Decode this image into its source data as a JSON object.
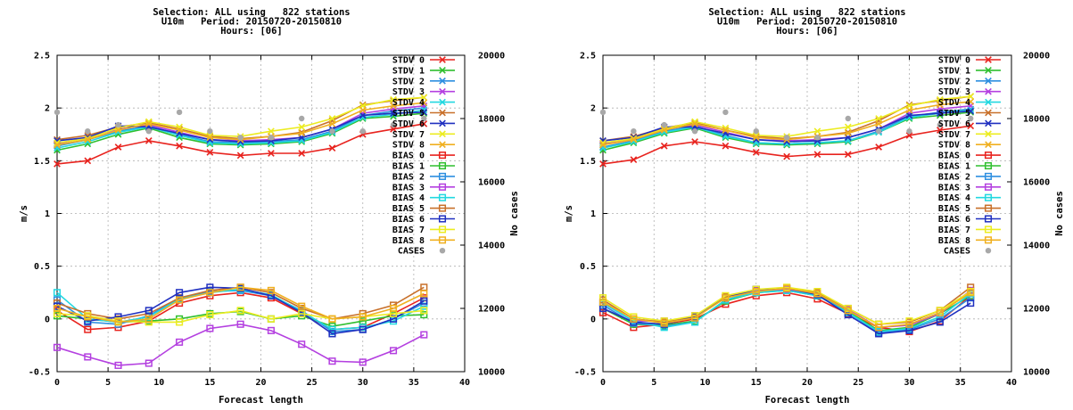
{
  "series_style": {
    "STDV 0": {
      "color": "#e8231e",
      "marker": "x"
    },
    "STDV 1": {
      "color": "#2fbf2f",
      "marker": "x"
    },
    "STDV 2": {
      "color": "#2e8fe0",
      "marker": "x"
    },
    "STDV 3": {
      "color": "#b440e0",
      "marker": "x"
    },
    "STDV 4": {
      "color": "#22d8e0",
      "marker": "x"
    },
    "STDV 5": {
      "color": "#c8702a",
      "marker": "x"
    },
    "STDV 6": {
      "color": "#2030c0",
      "marker": "x"
    },
    "STDV 7": {
      "color": "#ecec20",
      "marker": "x"
    },
    "STDV 8": {
      "color": "#f0b020",
      "marker": "x"
    },
    "BIAS 0": {
      "color": "#e8231e",
      "marker": "s"
    },
    "BIAS 1": {
      "color": "#2fbf2f",
      "marker": "s"
    },
    "BIAS 2": {
      "color": "#2e8fe0",
      "marker": "s"
    },
    "BIAS 3": {
      "color": "#b440e0",
      "marker": "s"
    },
    "BIAS 4": {
      "color": "#22d8e0",
      "marker": "s"
    },
    "BIAS 5": {
      "color": "#c8702a",
      "marker": "s"
    },
    "BIAS 6": {
      "color": "#2030c0",
      "marker": "s"
    },
    "BIAS 7": {
      "color": "#ecec20",
      "marker": "s"
    },
    "BIAS 8": {
      "color": "#f0b020",
      "marker": "s"
    },
    "CASES": {
      "color": "#a8a8a8",
      "marker": "o"
    }
  },
  "chart_data": [
    {
      "type": "line",
      "title_lines": [
        "Selection: ALL using   822 stations",
        "U10m   Period: 20150720-20150810",
        "Hours: [06]"
      ],
      "xlabel": "Forecast length",
      "ylabel": "m/s",
      "y2label": "No cases",
      "xlim": [
        0,
        40
      ],
      "ylim": [
        -0.5,
        2.5
      ],
      "y2lim": [
        10000,
        20000
      ],
      "xticks": [
        "0",
        "5",
        "10",
        "15",
        "20",
        "25",
        "30",
        "35",
        "40"
      ],
      "yticks": [
        "-0.5",
        "0",
        "0.5",
        "1",
        "1.5",
        "2",
        "2.5"
      ],
      "y2ticks": [
        "10000",
        "12000",
        "14000",
        "16000",
        "18000",
        "20000"
      ],
      "grid": true,
      "legend_position": "top-right",
      "x": [
        0,
        3,
        6,
        9,
        12,
        15,
        18,
        21,
        24,
        27,
        30,
        33,
        36
      ],
      "series": [
        {
          "name": "STDV 0",
          "axis": "y",
          "values": [
            1.47,
            1.5,
            1.63,
            1.69,
            1.64,
            1.58,
            1.55,
            1.57,
            1.57,
            1.62,
            1.75,
            1.8,
            1.85
          ]
        },
        {
          "name": "STDV 1",
          "axis": "y",
          "values": [
            1.6,
            1.66,
            1.75,
            1.81,
            1.72,
            1.66,
            1.65,
            1.66,
            1.68,
            1.76,
            1.9,
            1.92,
            1.95
          ]
        },
        {
          "name": "STDV 2",
          "axis": "y",
          "values": [
            1.64,
            1.7,
            1.78,
            1.83,
            1.75,
            1.68,
            1.67,
            1.68,
            1.7,
            1.78,
            1.93,
            1.97,
            2.0
          ]
        },
        {
          "name": "STDV 3",
          "axis": "y",
          "values": [
            1.66,
            1.72,
            1.8,
            1.84,
            1.77,
            1.7,
            1.69,
            1.7,
            1.72,
            1.8,
            1.95,
            1.99,
            2.02
          ]
        },
        {
          "name": "STDV 4",
          "axis": "y",
          "values": [
            1.62,
            1.68,
            1.77,
            1.82,
            1.74,
            1.67,
            1.66,
            1.67,
            1.69,
            1.77,
            1.91,
            1.94,
            1.98
          ]
        },
        {
          "name": "STDV 5",
          "axis": "y",
          "values": [
            1.7,
            1.74,
            1.82,
            1.86,
            1.8,
            1.73,
            1.71,
            1.73,
            1.77,
            1.88,
            2.03,
            2.07,
            2.1
          ]
        },
        {
          "name": "STDV 6",
          "axis": "y",
          "values": [
            1.69,
            1.72,
            1.83,
            1.82,
            1.76,
            1.7,
            1.68,
            1.69,
            1.72,
            1.8,
            1.93,
            1.95,
            1.96
          ]
        },
        {
          "name": "STDV 7",
          "axis": "y",
          "values": [
            1.67,
            1.71,
            1.81,
            1.87,
            1.82,
            1.74,
            1.73,
            1.78,
            1.82,
            1.9,
            2.02,
            2.08,
            2.1
          ]
        },
        {
          "name": "STDV 8",
          "axis": "y",
          "values": [
            1.65,
            1.7,
            1.79,
            1.85,
            1.79,
            1.72,
            1.7,
            1.73,
            1.76,
            1.85,
            1.98,
            2.02,
            2.05
          ]
        },
        {
          "name": "BIAS 0",
          "axis": "y",
          "values": [
            0.08,
            -0.1,
            -0.08,
            -0.02,
            0.15,
            0.22,
            0.25,
            0.2,
            0.05,
            -0.1,
            -0.08,
            0.05,
            0.2
          ]
        },
        {
          "name": "BIAS 1",
          "axis": "y",
          "values": [
            0.03,
            0.0,
            -0.03,
            -0.02,
            0.0,
            0.05,
            0.07,
            0.0,
            0.03,
            -0.07,
            -0.02,
            0.03,
            0.04
          ]
        },
        {
          "name": "BIAS 2",
          "axis": "y",
          "values": [
            0.18,
            -0.03,
            -0.05,
            0.03,
            0.2,
            0.26,
            0.27,
            0.22,
            0.08,
            -0.12,
            -0.1,
            0.0,
            0.15
          ]
        },
        {
          "name": "BIAS 3",
          "axis": "y",
          "values": [
            -0.27,
            -0.36,
            -0.44,
            -0.42,
            -0.22,
            -0.09,
            -0.05,
            -0.11,
            -0.24,
            -0.4,
            -0.41,
            -0.3,
            -0.15
          ]
        },
        {
          "name": "BIAS 4",
          "axis": "y",
          "values": [
            0.25,
            0.0,
            -0.03,
            0.02,
            0.19,
            0.25,
            0.28,
            0.23,
            0.07,
            -0.1,
            -0.08,
            -0.02,
            0.12
          ]
        },
        {
          "name": "BIAS 5",
          "axis": "y",
          "values": [
            0.15,
            0.05,
            0.0,
            0.05,
            0.2,
            0.27,
            0.3,
            0.25,
            0.1,
            0.0,
            0.05,
            0.13,
            0.3
          ]
        },
        {
          "name": "BIAS 6",
          "axis": "y",
          "values": [
            0.12,
            -0.02,
            0.02,
            0.08,
            0.25,
            0.3,
            0.29,
            0.22,
            0.06,
            -0.14,
            -0.1,
            0.0,
            0.17
          ]
        },
        {
          "name": "BIAS 7",
          "axis": "y",
          "values": [
            0.05,
            0.03,
            -0.02,
            -0.03,
            -0.03,
            0.04,
            0.08,
            0.0,
            0.05,
            0.0,
            0.02,
            0.05,
            0.08
          ]
        },
        {
          "name": "BIAS 8",
          "axis": "y",
          "values": [
            0.1,
            0.02,
            -0.03,
            0.0,
            0.18,
            0.25,
            0.3,
            0.27,
            0.12,
            0.0,
            0.02,
            0.1,
            0.24
          ]
        },
        {
          "name": "CASES",
          "axis": "y2",
          "marker_only": true,
          "values": [
            18200,
            17600,
            17800,
            17600,
            18200,
            17600,
            17400,
            17400,
            18000,
            17600,
            17600,
            17800,
            18000
          ]
        }
      ]
    },
    {
      "type": "line",
      "title_lines": [
        "Selection: ALL using   822 stations",
        "U10m   Period: 20150720-20150810",
        "Hours: [06]"
      ],
      "xlabel": "Forecast length",
      "ylabel": "m/s",
      "y2label": "No cases",
      "xlim": [
        0,
        40
      ],
      "ylim": [
        -0.5,
        2.5
      ],
      "y2lim": [
        10000,
        20000
      ],
      "xticks": [
        "0",
        "5",
        "10",
        "15",
        "20",
        "25",
        "30",
        "35",
        "40"
      ],
      "yticks": [
        "-0.5",
        "0",
        "0.5",
        "1",
        "1.5",
        "2",
        "2.5"
      ],
      "y2ticks": [
        "10000",
        "12000",
        "14000",
        "16000",
        "18000",
        "20000"
      ],
      "grid": true,
      "legend_position": "top-right",
      "x": [
        0,
        3,
        6,
        9,
        12,
        15,
        18,
        21,
        24,
        27,
        30,
        33,
        36
      ],
      "series": [
        {
          "name": "STDV 0",
          "axis": "y",
          "values": [
            1.47,
            1.51,
            1.64,
            1.68,
            1.64,
            1.58,
            1.54,
            1.56,
            1.56,
            1.63,
            1.74,
            1.79,
            1.83
          ]
        },
        {
          "name": "STDV 1",
          "axis": "y",
          "values": [
            1.6,
            1.67,
            1.76,
            1.81,
            1.72,
            1.66,
            1.65,
            1.66,
            1.68,
            1.77,
            1.9,
            1.93,
            1.96
          ]
        },
        {
          "name": "STDV 2",
          "axis": "y",
          "values": [
            1.63,
            1.69,
            1.78,
            1.83,
            1.74,
            1.67,
            1.66,
            1.67,
            1.69,
            1.78,
            1.92,
            1.96,
            1.99
          ]
        },
        {
          "name": "STDV 3",
          "axis": "y",
          "values": [
            1.66,
            1.71,
            1.8,
            1.84,
            1.77,
            1.7,
            1.69,
            1.7,
            1.72,
            1.8,
            1.95,
            1.99,
            2.02
          ]
        },
        {
          "name": "STDV 4",
          "axis": "y",
          "values": [
            1.62,
            1.68,
            1.77,
            1.82,
            1.73,
            1.67,
            1.66,
            1.67,
            1.69,
            1.77,
            1.91,
            1.95,
            1.98
          ]
        },
        {
          "name": "STDV 5",
          "axis": "y",
          "values": [
            1.69,
            1.73,
            1.81,
            1.86,
            1.79,
            1.73,
            1.71,
            1.73,
            1.77,
            1.88,
            2.03,
            2.07,
            2.11
          ]
        },
        {
          "name": "STDV 6",
          "axis": "y",
          "values": [
            1.69,
            1.72,
            1.82,
            1.82,
            1.76,
            1.7,
            1.68,
            1.69,
            1.72,
            1.8,
            1.93,
            1.95,
            1.97
          ]
        },
        {
          "name": "STDV 7",
          "axis": "y",
          "values": [
            1.67,
            1.71,
            1.8,
            1.87,
            1.81,
            1.74,
            1.73,
            1.78,
            1.82,
            1.9,
            2.02,
            2.08,
            2.11
          ]
        },
        {
          "name": "STDV 8",
          "axis": "y",
          "values": [
            1.65,
            1.7,
            1.79,
            1.85,
            1.79,
            1.72,
            1.7,
            1.73,
            1.76,
            1.85,
            1.98,
            2.03,
            2.06
          ]
        },
        {
          "name": "BIAS 0",
          "axis": "y",
          "values": [
            0.06,
            -0.08,
            -0.05,
            0.0,
            0.14,
            0.22,
            0.25,
            0.19,
            0.05,
            -0.08,
            -0.12,
            -0.02,
            0.22
          ]
        },
        {
          "name": "BIAS 1",
          "axis": "y",
          "values": [
            0.1,
            -0.05,
            -0.06,
            -0.02,
            0.17,
            0.25,
            0.27,
            0.22,
            0.07,
            -0.11,
            -0.08,
            0.05,
            0.22
          ]
        },
        {
          "name": "BIAS 2",
          "axis": "y",
          "values": [
            0.13,
            -0.04,
            -0.07,
            -0.03,
            0.18,
            0.26,
            0.28,
            0.23,
            0.06,
            -0.13,
            -0.1,
            0.0,
            0.2
          ]
        },
        {
          "name": "BIAS 3",
          "axis": "y",
          "values": [
            0.15,
            -0.02,
            -0.02,
            0.02,
            0.2,
            0.27,
            0.28,
            0.24,
            0.09,
            -0.08,
            -0.06,
            0.05,
            0.27
          ]
        },
        {
          "name": "BIAS 4",
          "axis": "y",
          "values": [
            0.15,
            -0.02,
            -0.08,
            -0.03,
            0.18,
            0.25,
            0.27,
            0.22,
            0.06,
            -0.12,
            -0.09,
            0.02,
            0.24
          ]
        },
        {
          "name": "BIAS 5",
          "axis": "y",
          "values": [
            0.18,
            0.0,
            -0.03,
            0.03,
            0.21,
            0.28,
            0.29,
            0.25,
            0.1,
            -0.05,
            -0.03,
            0.08,
            0.3
          ]
        },
        {
          "name": "BIAS 6",
          "axis": "y",
          "values": [
            0.1,
            -0.03,
            -0.05,
            0.02,
            0.2,
            0.28,
            0.29,
            0.23,
            0.04,
            -0.14,
            -0.11,
            -0.03,
            0.15
          ]
        },
        {
          "name": "BIAS 7",
          "axis": "y",
          "values": [
            0.2,
            0.02,
            -0.02,
            0.03,
            0.22,
            0.28,
            0.3,
            0.26,
            0.1,
            -0.05,
            -0.02,
            0.08,
            0.26
          ]
        },
        {
          "name": "BIAS 8",
          "axis": "y",
          "values": [
            0.16,
            0.0,
            -0.04,
            0.01,
            0.2,
            0.26,
            0.29,
            0.24,
            0.08,
            -0.08,
            -0.05,
            0.06,
            0.25
          ]
        },
        {
          "name": "CASES",
          "axis": "y2",
          "marker_only": true,
          "values": [
            18200,
            17600,
            17800,
            17600,
            18200,
            17600,
            17400,
            17400,
            18000,
            17600,
            17600,
            17800,
            18000
          ]
        }
      ]
    }
  ]
}
